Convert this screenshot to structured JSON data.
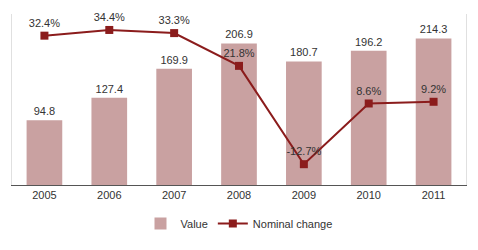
{
  "chart_data": {
    "type": "bar",
    "categories": [
      "2005",
      "2006",
      "2007",
      "2008",
      "2009",
      "2010",
      "2011"
    ],
    "series": [
      {
        "name": "Value",
        "type": "bar",
        "color": "#c9a1a1",
        "values": [
          94.8,
          127.4,
          169.9,
          206.9,
          180.7,
          196.2,
          214.3
        ]
      },
      {
        "name": "Nominal change",
        "type": "line",
        "axis": "y2",
        "color": "#8b1c1c",
        "marker": "square",
        "values": [
          32.4,
          34.4,
          33.3,
          21.8,
          -12.7,
          8.6,
          9.2
        ],
        "value_labels": [
          "32.4%",
          "34.4%",
          "33.3%",
          "21.8%",
          "-12.7%",
          "8.6%",
          "9.2%"
        ]
      }
    ],
    "ylim": [
      0,
      250
    ],
    "y2lim": [
      -20,
      40
    ],
    "tick_labels": "x",
    "grid": false,
    "legend": "bottom",
    "data_labels": true
  }
}
